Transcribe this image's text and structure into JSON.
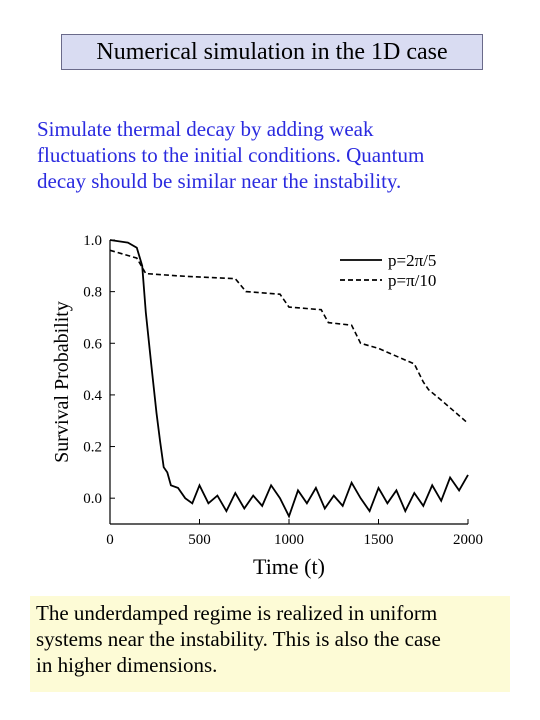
{
  "slide": {
    "title": "Numerical simulation in the 1D case",
    "intro_lines": [
      "Simulate thermal decay by adding weak",
      "fluctuations to the initial conditions. Quantum",
      "decay should be similar near the instability."
    ],
    "conclusion_lines": [
      "The underdamped regime is realized in uniform",
      "systems near the instability. This is also the case",
      "in higher dimensions."
    ]
  },
  "chart_data": {
    "type": "line",
    "xlabel": "Time (t)",
    "ylabel": "Survival Probability",
    "xlim": [
      0,
      2000
    ],
    "ylim": [
      -0.1,
      1.0
    ],
    "xticks": [
      "0",
      "500",
      "1000",
      "1500",
      "2000"
    ],
    "yticks": [
      "0.0",
      "0.2",
      "0.4",
      "0.6",
      "0.8",
      "1.0"
    ],
    "legend_position": "top-right",
    "series": [
      {
        "name": "p=2π/5",
        "style": "solid",
        "points": [
          [
            0,
            1.0
          ],
          [
            100,
            0.99
          ],
          [
            150,
            0.97
          ],
          [
            180,
            0.9
          ],
          [
            200,
            0.72
          ],
          [
            230,
            0.52
          ],
          [
            260,
            0.33
          ],
          [
            280,
            0.22
          ],
          [
            300,
            0.12
          ],
          [
            320,
            0.1
          ],
          [
            340,
            0.05
          ],
          [
            380,
            0.04
          ],
          [
            420,
            0.0
          ],
          [
            460,
            -0.02
          ],
          [
            500,
            0.05
          ],
          [
            550,
            -0.02
          ],
          [
            600,
            0.01
          ],
          [
            650,
            -0.05
          ],
          [
            700,
            0.02
          ],
          [
            750,
            -0.04
          ],
          [
            800,
            0.01
          ],
          [
            850,
            -0.03
          ],
          [
            900,
            0.05
          ],
          [
            950,
            0.0
          ],
          [
            1000,
            -0.07
          ],
          [
            1050,
            0.03
          ],
          [
            1100,
            -0.02
          ],
          [
            1150,
            0.04
          ],
          [
            1200,
            -0.04
          ],
          [
            1250,
            0.01
          ],
          [
            1300,
            -0.03
          ],
          [
            1350,
            0.06
          ],
          [
            1400,
            0.0
          ],
          [
            1450,
            -0.05
          ],
          [
            1500,
            0.04
          ],
          [
            1550,
            -0.02
          ],
          [
            1600,
            0.03
          ],
          [
            1650,
            -0.05
          ],
          [
            1700,
            0.02
          ],
          [
            1750,
            -0.03
          ],
          [
            1800,
            0.05
          ],
          [
            1850,
            -0.01
          ],
          [
            1900,
            0.08
          ],
          [
            1950,
            0.03
          ],
          [
            2000,
            0.09
          ]
        ]
      },
      {
        "name": "p=π/10",
        "style": "dashed",
        "points": [
          [
            0,
            0.96
          ],
          [
            100,
            0.94
          ],
          [
            150,
            0.93
          ],
          [
            200,
            0.87
          ],
          [
            400,
            0.86
          ],
          [
            700,
            0.85
          ],
          [
            760,
            0.8
          ],
          [
            950,
            0.79
          ],
          [
            1000,
            0.74
          ],
          [
            1180,
            0.73
          ],
          [
            1220,
            0.68
          ],
          [
            1350,
            0.67
          ],
          [
            1400,
            0.6
          ],
          [
            1500,
            0.58
          ],
          [
            1600,
            0.55
          ],
          [
            1700,
            0.52
          ],
          [
            1750,
            0.45
          ],
          [
            1780,
            0.42
          ],
          [
            1850,
            0.38
          ],
          [
            1950,
            0.32
          ],
          [
            2000,
            0.29
          ]
        ]
      }
    ]
  }
}
